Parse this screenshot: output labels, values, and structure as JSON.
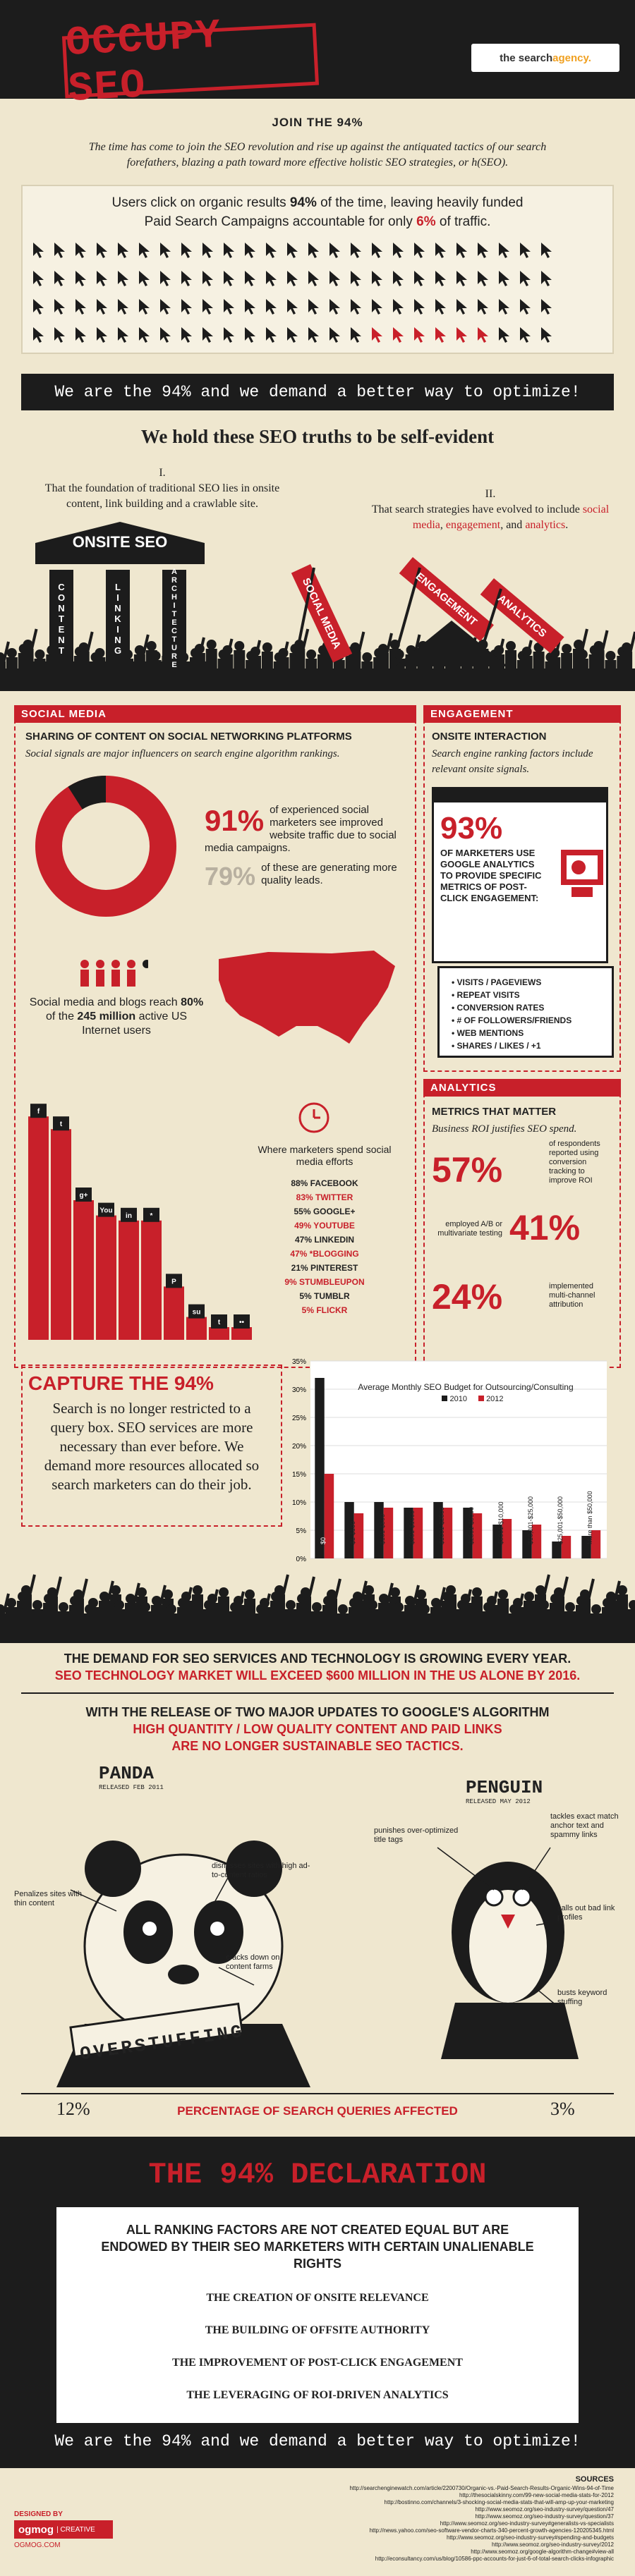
{
  "header": {
    "title": "OCCUPY SEO",
    "agency_prefix": "the search ",
    "agency_bold": "agency."
  },
  "join": {
    "heading": "JOIN THE 94%",
    "text": "The time has come to join the SEO revolution and rise up against the antiquated tactics of our search forefathers, blazing a path toward more effective holistic SEO strategies, or h(SEO)."
  },
  "clicks": {
    "line1_a": "Users click on organic results ",
    "line1_b": "94%",
    "line1_c": " of the time, leaving heavily funded",
    "line2_a": "Paid Search Campaigns accountable for only ",
    "line2_b": "6%",
    "line2_c": " of traffic.",
    "grid_total": 100,
    "grid_red": 6
  },
  "banner_text": "We are the 94% and we demand a better way to optimize!",
  "truths": {
    "heading": "We hold these SEO truths to be self-evident",
    "one_num": "I.",
    "one_text": "That the foundation of traditional SEO lies in onsite content, link building and a crawlable site.",
    "two_num": "II.",
    "two_a": "That search strategies have evolved to include ",
    "two_b": "social media",
    "two_c": ", ",
    "two_d": "engagement",
    "two_e": ", and ",
    "two_f": "analytics",
    "two_g": ".",
    "temple_roof": "ONSITE SEO",
    "columns": [
      "CONTENT",
      "LINKING",
      "ARCHITECTURE"
    ],
    "signs": [
      "SOCIAL MEDIA",
      "ENGAGEMENT",
      "ANALYTICS"
    ]
  },
  "social": {
    "tab": "SOCIAL MEDIA",
    "heading": "SHARING OF CONTENT ON SOCIAL NETWORKING PLATFORMS",
    "sub": "Social signals are major influencers on search engine algorithm rankings.",
    "stat1_num": "91%",
    "stat1_text": "of experienced social marketers see improved website traffic due to social media campaigns.",
    "stat2_num": "79%",
    "stat2_text": "of these are generating more quality leads.",
    "pie_percent": 91,
    "users_a": "Social media and blogs reach ",
    "users_b": "80%",
    "users_c": " of the ",
    "users_d": "245 million",
    "users_e": " active US Internet users",
    "spend_title": "Where marketers spend social media efforts",
    "platforms": [
      {
        "label": "88% FACEBOOK",
        "value": 88,
        "icon": "f"
      },
      {
        "label": "83% TWITTER",
        "value": 83,
        "icon": "t"
      },
      {
        "label": "55% GOOGLE+",
        "value": 55,
        "icon": "g+"
      },
      {
        "label": "49% YOUTUBE",
        "value": 49,
        "icon": "You"
      },
      {
        "label": "47% LINKEDIN",
        "value": 47,
        "icon": "in"
      },
      {
        "label": "47% *BLOGGING",
        "value": 47,
        "icon": "*"
      },
      {
        "label": "21% PINTEREST",
        "value": 21,
        "icon": "P"
      },
      {
        "label": "9% STUMBLEUPON",
        "value": 9,
        "icon": "su"
      },
      {
        "label": "5% TUMBLR",
        "value": 5,
        "icon": "t"
      },
      {
        "label": "5% FLICKR",
        "value": 5,
        "icon": "••"
      }
    ]
  },
  "engagement": {
    "tab": "ENGAGEMENT",
    "heading": "ONSITE INTERACTION",
    "sub": "Search engine ranking factors include relevant onsite signals.",
    "num": "93%",
    "text": "OF MARKETERS USE GOOGLE ANALYTICS TO PROVIDE SPECIFIC METRICS OF POST-CLICK ENGAGEMENT:",
    "list": [
      "• VISITS / PAGEVIEWS",
      "• REPEAT VISITS",
      "• CONVERSION RATES",
      "• # OF FOLLOWERS/FRIENDS",
      "• WEB MENTIONS",
      "• SHARES / LIKES / +1"
    ]
  },
  "analytics": {
    "tab": "ANALYTICS",
    "heading": "METRICS THAT MATTER",
    "sub": "Business ROI justifies SEO spend.",
    "stats": [
      {
        "num": "57%",
        "text": "of respondents reported using conversion tracking to improve ROI"
      },
      {
        "num": "41%",
        "text": "employed A/B or multivariate testing"
      },
      {
        "num": "24%",
        "text": "implemented multi-channel attribution"
      }
    ]
  },
  "capture": {
    "heading": "CAPTURE THE 94%",
    "text": "Search is no longer restricted to a query box. SEO services are more necessary than ever before. We demand more resources allocated so search marketers can do their job."
  },
  "chart_data": {
    "type": "bar",
    "title": "Average Monthly SEO Budget for Outsourcing/Consulting",
    "categories": [
      "$0",
      "$1-$100",
      "$101-$500",
      "$501-$1000",
      "$1001-$2500",
      "$2501-$5000",
      "$5001-$10,000",
      "$10,001-$25,000",
      "$25,001-$50,000",
      "More than $50,000"
    ],
    "series": [
      {
        "name": "2010",
        "color": "#1c1c1c",
        "values": [
          32,
          10,
          10,
          9,
          10,
          9,
          6,
          5,
          3,
          4
        ]
      },
      {
        "name": "2012",
        "color": "#c8202a",
        "values": [
          15,
          8,
          9,
          9,
          9,
          8,
          7,
          6,
          4,
          5
        ]
      }
    ],
    "ylim": [
      0,
      35
    ],
    "yticks": [
      "0%",
      "5%",
      "10%",
      "15%",
      "20%",
      "25%",
      "30%",
      "35%"
    ],
    "legend": "top"
  },
  "demand": {
    "line1": "THE DEMAND FOR SEO SERVICES AND TECHNOLOGY IS GROWING EVERY YEAR.",
    "line2": "SEO TECHNOLOGY MARKET WILL EXCEED $600 MILLION IN THE US ALONE BY 2016."
  },
  "updates": {
    "line1": "WITH THE RELEASE OF TWO MAJOR UPDATES TO GOOGLE'S ALGORITHM",
    "line2": "HIGH QUANTITY / LOW QUALITY CONTENT AND PAID LINKS",
    "line3": "ARE NO LONGER SUSTAINABLE SEO TACTICS.",
    "panda": "PANDA",
    "panda_date": "RELEASED FEB 2011",
    "penguin": "PENGUIN",
    "penguin_date": "RELEASED MAY 2012",
    "panda_notes": [
      "Penalizes sites with thin content",
      "dismisses sites with high ad-to-content ratios",
      "cracks down on content farms"
    ],
    "penguin_notes": [
      "punishes over-optimized title tags",
      "tackles exact match anchor text and spammy links",
      "calls out bad link profiles",
      "busts keyword stuffing"
    ],
    "sign": "OVERSTUFFING",
    "pct_left": "12%",
    "pct_label": "PERCENTAGE OF SEARCH QUERIES AFFECTED",
    "pct_right": "3%"
  },
  "declaration": {
    "title": "THE 94% DECLARATION",
    "lead": "ALL RANKING FACTORS ARE NOT CREATED EQUAL BUT ARE ENDOWED BY THEIR SEO MARKETERS WITH CERTAIN UNALIENABLE RIGHTS",
    "rights": [
      "THE CREATION OF ONSITE RELEVANCE",
      "THE BUILDING OF OFFSITE AUTHORITY",
      "THE IMPROVEMENT OF POST-CLICK ENGAGEMENT",
      "THE LEVERAGING OF ROI-DRIVEN ANALYTICS"
    ]
  },
  "sources": {
    "heading": "SOURCES",
    "list": [
      "http://searchenginewatch.com/article/2200730/Organic-vs.-Paid-Search-Results-Organic-Wins-94-of-Time",
      "http://thesocialskinny.com/99-new-social-media-stats-for-2012",
      "http://bostinno.com/channels/3-shocking-social-media-stats-that-will-amp-up-your-marketing",
      "http://www.seomoz.org/seo-industry-survey/question/47",
      "http://www.seomoz.org/seo-industry-survey/question/37",
      "http://www.seomoz.org/seo-industry-survey#generalists-vs-specialists",
      "http://news.yahoo.com/seo-software-vendor-charts-340-percent-growth-agencies-120205345.html",
      "http://www.seomoz.org/seo-industry-survey#spending-and-budgets",
      "http://www.seomoz.org/seo-industry-survey/2012",
      "http://www.seomoz.org/google-algorithm-change#view-all",
      "http://econsultancy.com/us/blog/10586-ppc-accounts-for-just-6-of-total-search-clicks-infographic"
    ]
  },
  "footer": {
    "designed_by": "DESIGNED BY",
    "brand": "ogmog",
    "creative": "| CREATIVE",
    "site": "OGMOG.COM"
  },
  "colors": {
    "red": "#c8202a",
    "dark": "#1c1c1c",
    "cream": "#efe7cf"
  }
}
